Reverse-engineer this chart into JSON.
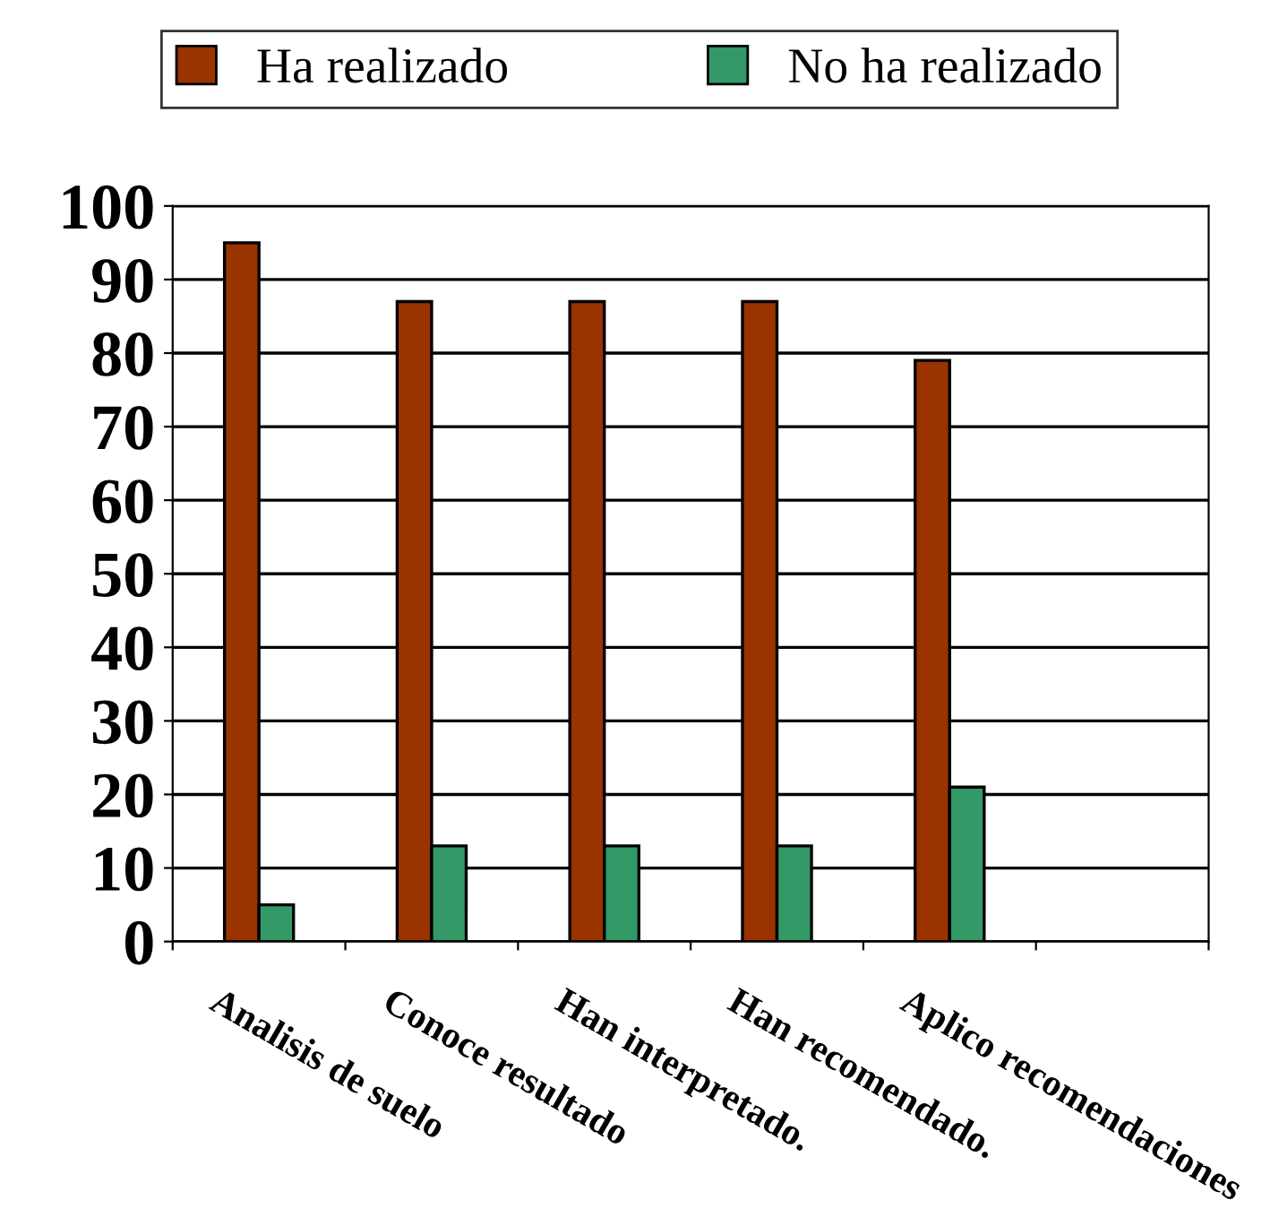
{
  "chart_data": {
    "type": "bar",
    "categories": [
      "Analisis de suelo",
      "Conoce resultado",
      "Han interpretado.",
      "Han recomendado.",
      "Aplico recomendaciones",
      null
    ],
    "series": [
      {
        "name": "Ha realizado",
        "color": "#993300",
        "values": [
          95,
          87,
          87,
          87,
          79,
          null
        ]
      },
      {
        "name": "No ha realizado",
        "color": "#339966",
        "values": [
          5,
          13,
          13,
          13,
          21,
          null
        ]
      }
    ],
    "ylim": [
      0,
      100
    ],
    "yticks": [
      0,
      10,
      20,
      30,
      40,
      50,
      60,
      70,
      80,
      90,
      100
    ],
    "grid": "y",
    "legend": "top"
  }
}
